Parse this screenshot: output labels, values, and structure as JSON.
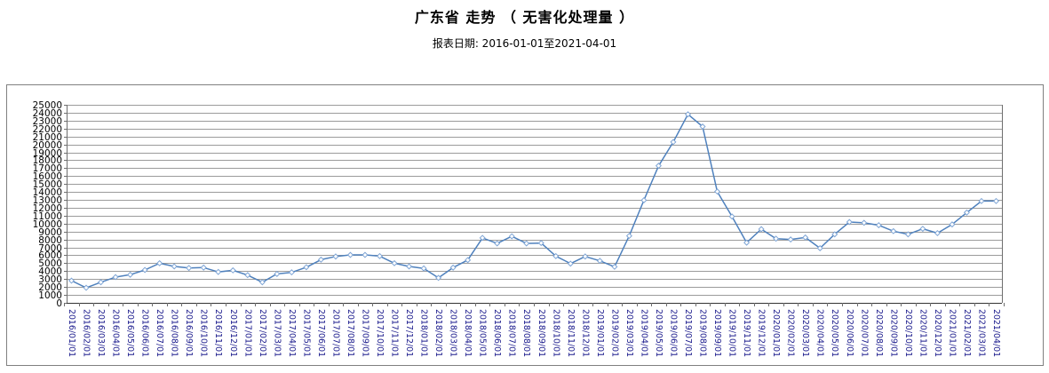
{
  "header": {
    "title": "广东省 走势 （ 无害化处理量 ）",
    "subtitle": "报表日期: 2016-01-01至2021-04-01"
  },
  "chart_data": {
    "type": "line",
    "title": "广东省 走势 （ 无害化处理量 ）",
    "subtitle": "报表日期: 2016-01-01至2021-04-01",
    "xlabel": "",
    "ylabel": "",
    "ylim": [
      0,
      25000
    ],
    "ytick_step": 1000,
    "grid": true,
    "legend": "none",
    "marker": "hollow-diamond",
    "categories": [
      "2016/01/01",
      "2016/02/01",
      "2016/03/01",
      "2016/04/01",
      "2016/05/01",
      "2016/06/01",
      "2016/07/01",
      "2016/08/01",
      "2016/09/01",
      "2016/10/01",
      "2016/11/01",
      "2016/12/01",
      "2017/01/01",
      "2017/02/01",
      "2017/03/01",
      "2017/04/01",
      "2017/05/01",
      "2017/06/01",
      "2017/07/01",
      "2017/08/01",
      "2017/09/01",
      "2017/10/01",
      "2017/11/01",
      "2017/12/01",
      "2018/01/01",
      "2018/02/01",
      "2018/03/01",
      "2018/04/01",
      "2018/05/01",
      "2018/06/01",
      "2018/07/01",
      "2018/08/01",
      "2018/09/01",
      "2018/10/01",
      "2018/11/01",
      "2018/12/01",
      "2019/01/01",
      "2019/02/01",
      "2019/03/01",
      "2019/04/01",
      "2019/05/01",
      "2019/06/01",
      "2019/07/01",
      "2019/08/01",
      "2019/09/01",
      "2019/10/01",
      "2019/11/01",
      "2019/12/01",
      "2020/01/01",
      "2020/02/01",
      "2020/03/01",
      "2020/04/01",
      "2020/05/01",
      "2020/06/01",
      "2020/07/01",
      "2020/08/01",
      "2020/09/01",
      "2020/10/01",
      "2020/11/01",
      "2020/12/01",
      "2021/01/01",
      "2021/02/01",
      "2021/03/01",
      "2021/04/01"
    ],
    "values": [
      2800,
      1900,
      2600,
      3250,
      3550,
      4150,
      5000,
      4600,
      4400,
      4450,
      3900,
      4100,
      3500,
      2600,
      3650,
      3850,
      4500,
      5450,
      5850,
      6050,
      6050,
      5900,
      5000,
      4600,
      4350,
      3150,
      4450,
      5400,
      8200,
      7500,
      8400,
      7500,
      7550,
      5900,
      4950,
      5850,
      5300,
      4550,
      8450,
      12950,
      17300,
      20300,
      23800,
      22250,
      14050,
      10900,
      7600,
      9300,
      8100,
      8000,
      8250,
      6900,
      8650,
      10200,
      10100,
      9800,
      9050,
      8650,
      9350,
      8800,
      9900,
      11400,
      12850,
      12850
    ],
    "colors": {
      "line": "#4f81bd",
      "marker_stroke": "#7fa5d5",
      "marker_fill": "#ffffff",
      "grid": "#9b9b9b",
      "frame": "#6e6e6e",
      "baseline_axis": "#333333",
      "ytick_label": "#000000",
      "xtick_label": "#1a1a8c",
      "box_border": "#808080"
    }
  }
}
